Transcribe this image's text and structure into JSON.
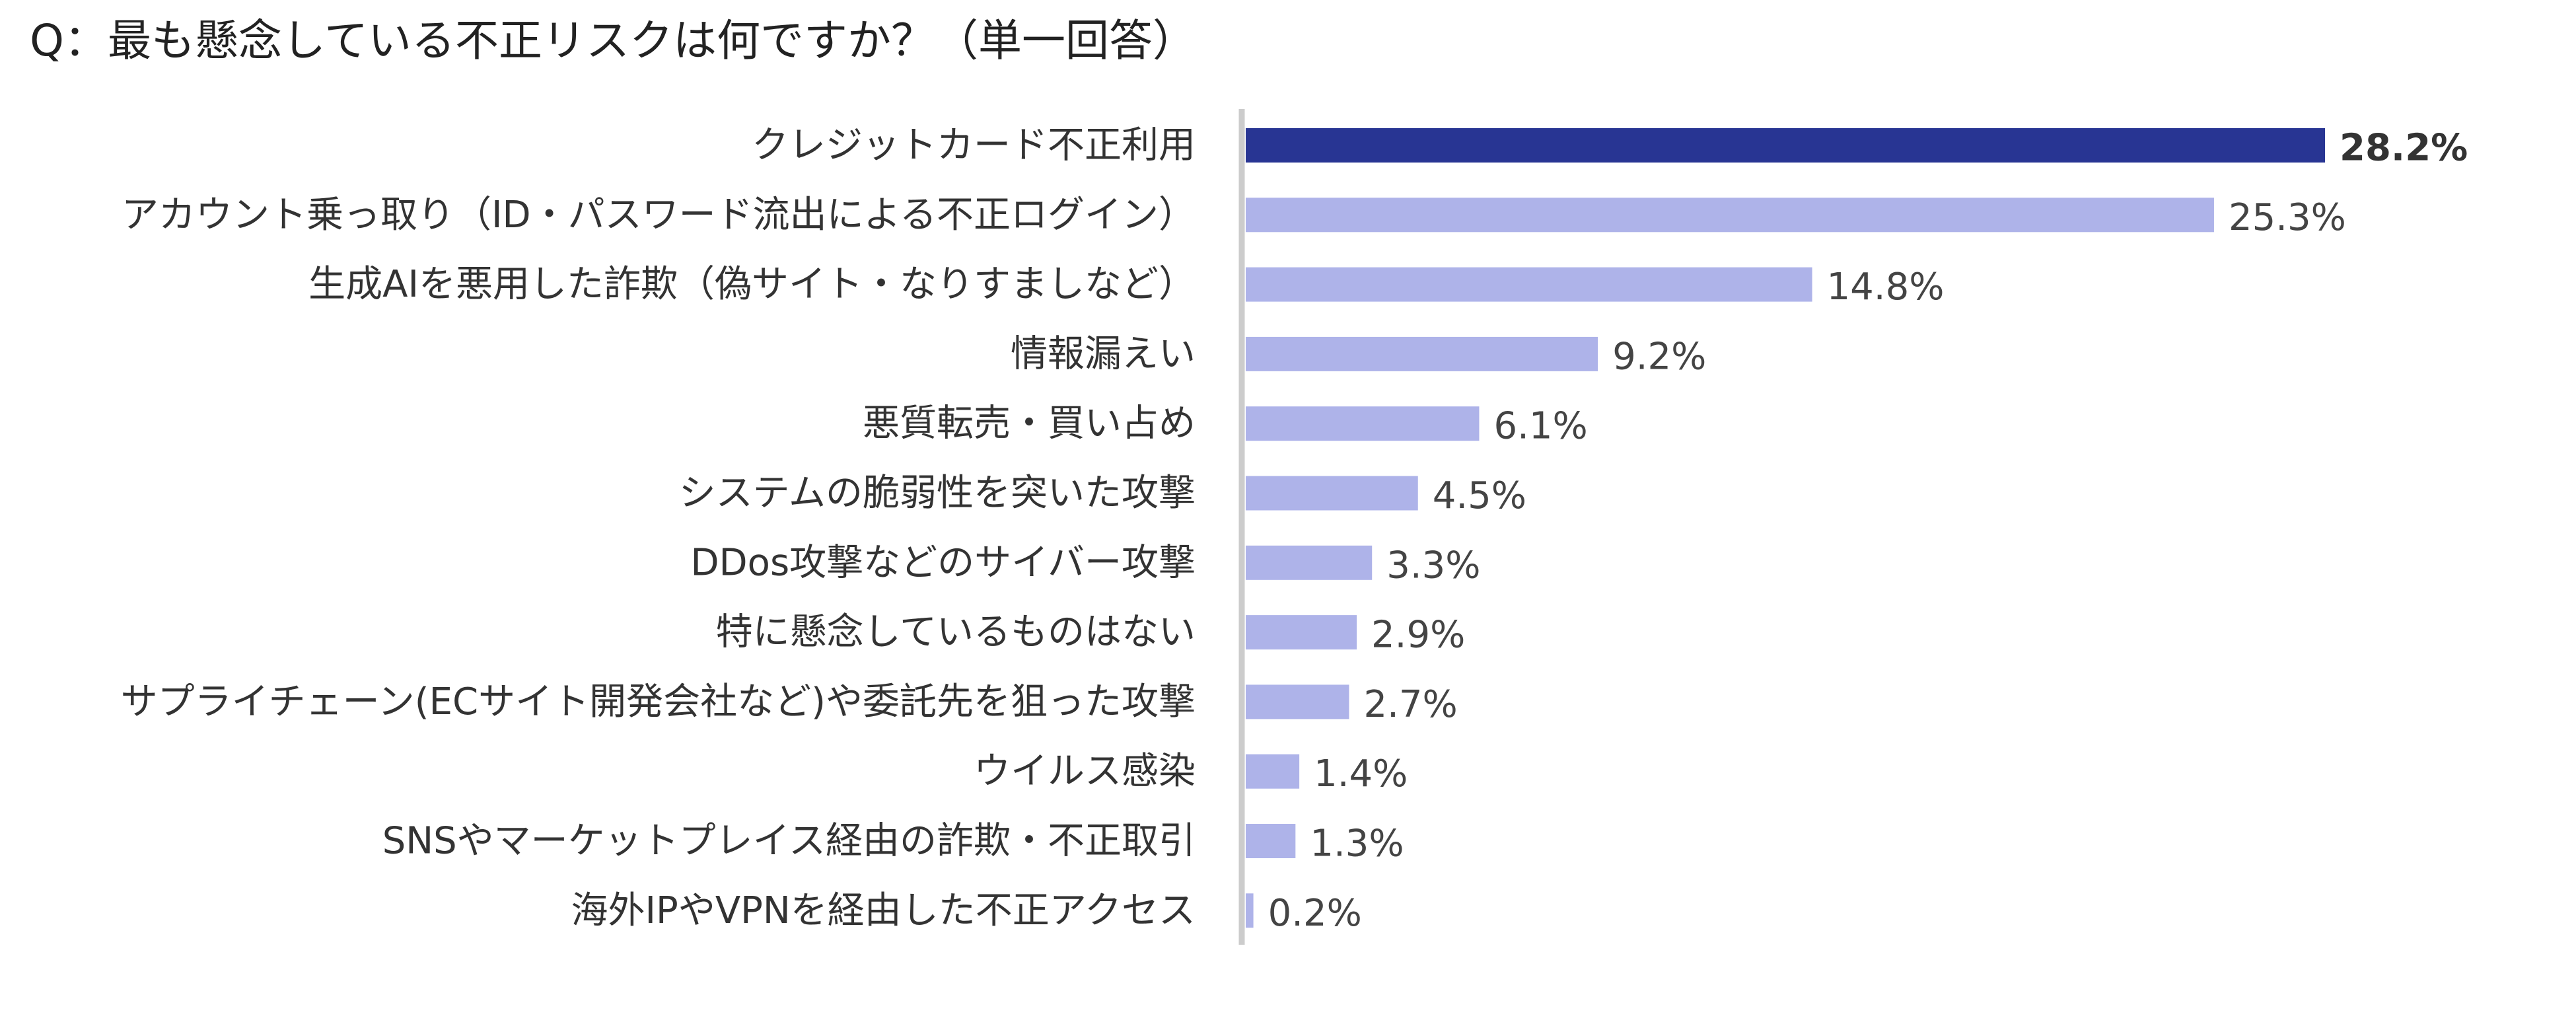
{
  "chart_data": {
    "type": "bar",
    "orientation": "horizontal",
    "title": "Q：最も懸念している不正リスクは何ですか？（単一回答）",
    "categories": [
      "クレジットカード不正利用",
      "アカウント乗っ取り（ID・パスワード流出による不正ログイン）",
      "生成AIを悪用した詐欺（偽サイト・なりすましなど）",
      "情報漏えい",
      "悪質転売・買い占め",
      "システムの脆弱性を突いた攻撃",
      "DDos攻撃などのサイバー攻撃",
      "特に懸念しているものはない",
      "サプライチェーン(ECサイト開発会社など)や委託先を狙った攻撃",
      "ウイルス感染",
      "SNSやマーケットプレイス経由の詐欺・不正取引",
      "海外IPやVPNを経由した不正アクセス"
    ],
    "values": [
      28.2,
      25.3,
      14.8,
      9.2,
      6.1,
      4.5,
      3.3,
      2.9,
      2.7,
      1.4,
      1.3,
      0.2
    ],
    "value_labels": [
      "28.2%",
      "25.3%",
      "14.8%",
      "9.2%",
      "6.1%",
      "4.5%",
      "3.3%",
      "2.9%",
      "2.7%",
      "1.4%",
      "1.3%",
      "0.2%"
    ],
    "highlight_index": 0,
    "xlim": [
      0,
      28.2
    ],
    "grid": false,
    "legend": "none",
    "colors": {
      "highlight": "#283593",
      "default": "#aeb3e9",
      "axis": "#cccccc"
    }
  }
}
